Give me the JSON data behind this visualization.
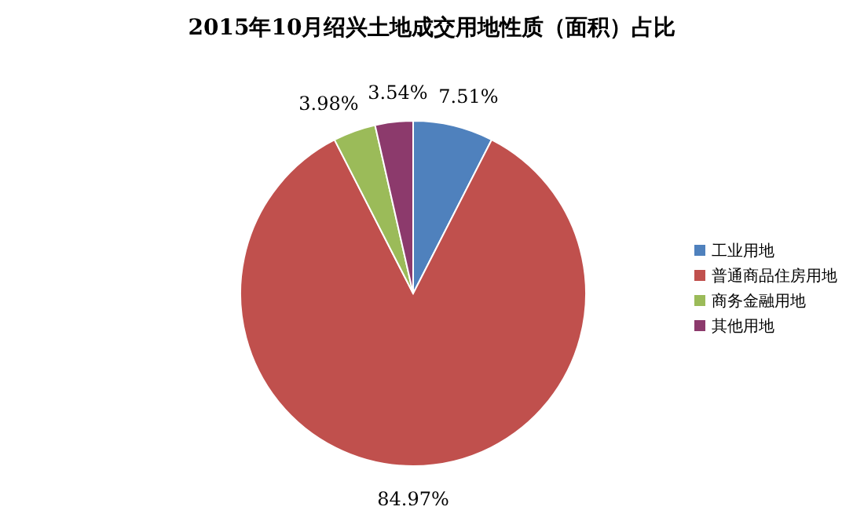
{
  "chart_data": {
    "type": "pie",
    "title": "2015年10月绍兴土地成交用地性质（面积）占比",
    "categories": [
      "工业用地",
      "普通商品住房用地",
      "商务金融用地",
      "其他用地"
    ],
    "values": [
      7.51,
      84.97,
      3.98,
      3.54
    ],
    "colors": [
      "#4f81bd",
      "#c0504d",
      "#9bbb59",
      "#8c3a6c"
    ],
    "value_labels": [
      "7.51%",
      "84.97%",
      "3.98%",
      "3.54%"
    ],
    "legend": "right"
  }
}
